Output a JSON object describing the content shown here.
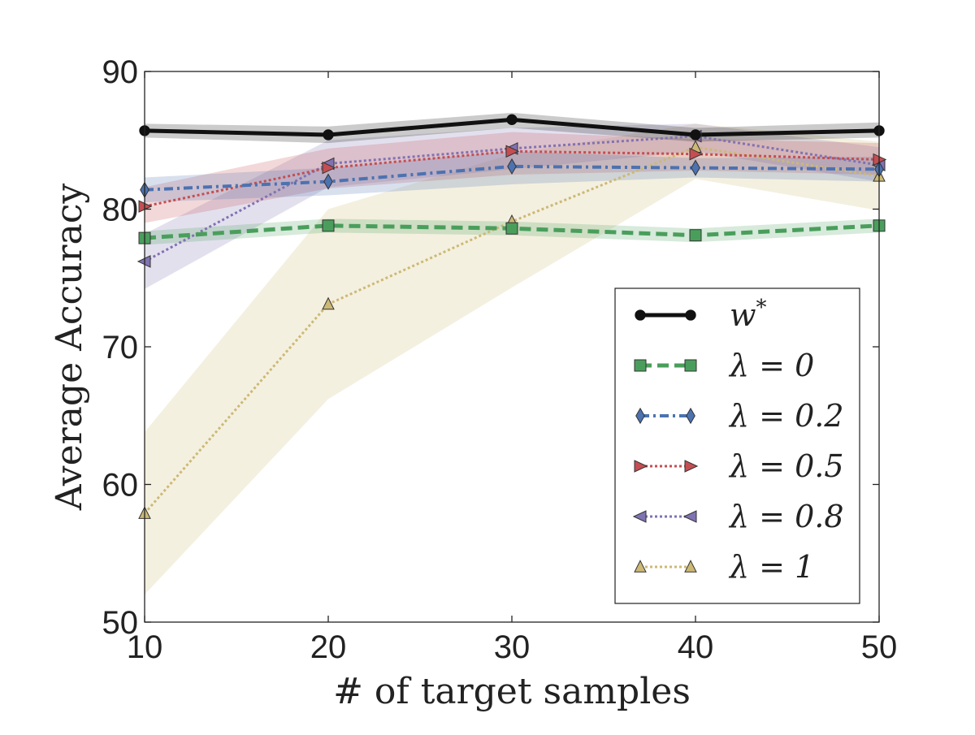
{
  "chart_data": {
    "type": "line",
    "title": "",
    "xlabel": "# of target samples",
    "ylabel": "Average Accuracy",
    "x": [
      10,
      20,
      30,
      40,
      50
    ],
    "xlim": [
      10,
      50
    ],
    "ylim": [
      50,
      90
    ],
    "xticks": [
      "10",
      "20",
      "30",
      "40",
      "50"
    ],
    "yticks": [
      "50",
      "60",
      "70",
      "80",
      "90"
    ],
    "grid": false,
    "legend_position": "lower-right",
    "series": [
      {
        "name": "w*",
        "legend_label": "w",
        "legend_sup": "*",
        "color": "#111111",
        "marker": "circle",
        "linestyle": "solid",
        "values": [
          85.7,
          85.4,
          86.5,
          85.4,
          85.7
        ],
        "band_lower": [
          85.2,
          84.8,
          85.9,
          84.9,
          85.2
        ],
        "band_upper": [
          86.2,
          86.0,
          87.0,
          85.9,
          86.3
        ]
      },
      {
        "name": "λ = 0",
        "legend_label": "λ = 0",
        "color": "#4a9e5c",
        "marker": "square",
        "linestyle": "dashed",
        "values": [
          77.9,
          78.8,
          78.6,
          78.1,
          78.8
        ],
        "band_lower": [
          77.4,
          78.3,
          78.1,
          77.6,
          78.3
        ],
        "band_upper": [
          78.4,
          79.3,
          79.1,
          78.6,
          79.3
        ]
      },
      {
        "name": "λ = 0.2",
        "legend_label": "λ = 0.2",
        "color": "#4c72b0",
        "marker": "diamond",
        "linestyle": "dashdot",
        "values": [
          81.4,
          82.0,
          83.1,
          83.0,
          82.9
        ],
        "band_lower": [
          80.5,
          81.0,
          81.8,
          82.3,
          82.0
        ],
        "band_upper": [
          82.3,
          83.0,
          84.2,
          83.7,
          83.8
        ]
      },
      {
        "name": "λ = 0.5",
        "legend_label": "λ = 0.5",
        "color": "#c44e52",
        "marker": "triangle-right",
        "linestyle": "dotted",
        "values": [
          80.2,
          83.0,
          84.2,
          84.0,
          83.6
        ],
        "band_lower": [
          79.0,
          81.5,
          82.5,
          82.8,
          82.5
        ],
        "band_upper": [
          81.6,
          84.4,
          85.6,
          85.1,
          84.8
        ]
      },
      {
        "name": "λ = 0.8",
        "legend_label": "λ = 0.8",
        "color": "#8172b2",
        "marker": "triangle-left",
        "linestyle": "dotted",
        "values": [
          76.2,
          83.3,
          84.4,
          85.3,
          83.2
        ],
        "band_lower": [
          74.2,
          81.6,
          82.9,
          84.2,
          82.0
        ],
        "band_upper": [
          78.2,
          85.0,
          85.9,
          86.2,
          84.5
        ]
      },
      {
        "name": "λ = 1",
        "legend_label": "λ = 1",
        "color": "#ccb974",
        "marker": "triangle-up",
        "linestyle": "dotted",
        "values": [
          57.9,
          73.1,
          79.1,
          84.5,
          82.4
        ],
        "band_lower": [
          52.0,
          66.2,
          74.3,
          82.2,
          79.9
        ],
        "band_upper": [
          63.8,
          80.0,
          84.0,
          86.2,
          84.9
        ]
      }
    ]
  }
}
